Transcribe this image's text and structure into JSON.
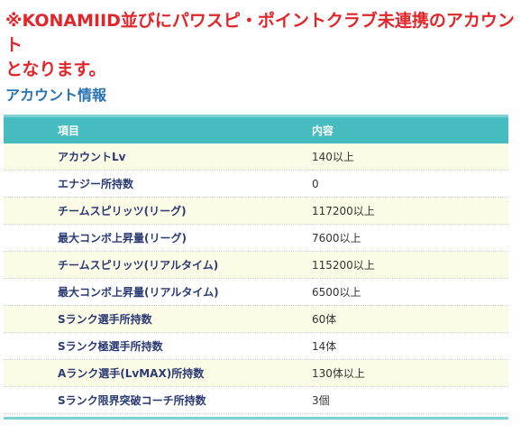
{
  "notice": {
    "line1": "※KONAMIID並びにパワスピ・ポイントクラブ未連携のアカウント",
    "line2": "となります。"
  },
  "section": {
    "title": "アカウント情報"
  },
  "table": {
    "headers": {
      "item": "項目",
      "content": "内容"
    },
    "rows": [
      {
        "item": "アカウントLv",
        "value": "140以上"
      },
      {
        "item": "エナジー所持数",
        "value": "0"
      },
      {
        "item": "チームスピリッツ(リーグ)",
        "value": "117200以上"
      },
      {
        "item": "最大コンボ上昇量(リーグ)",
        "value": "7600以上"
      },
      {
        "item": "チームスピリッツ(リアルタイム)",
        "value": "115200以上"
      },
      {
        "item": "最大コンボ上昇量(リアルタイム)",
        "value": "6500以上"
      },
      {
        "item": "Sランク選手所持数",
        "value": "60体"
      },
      {
        "item": "Sランク極選手所持数",
        "value": "14体"
      },
      {
        "item": "Aランク選手(LvMAX)所持数",
        "value": "130体以上"
      },
      {
        "item": "Sランク限界突破コーチ所持数",
        "value": "3個"
      }
    ]
  },
  "colors": {
    "notice": "#e0262b",
    "title": "#2a73b2",
    "header_bg": "#46bcc0",
    "row_alt_bg": "#fcfbe6",
    "item_text": "#2a3a72"
  }
}
